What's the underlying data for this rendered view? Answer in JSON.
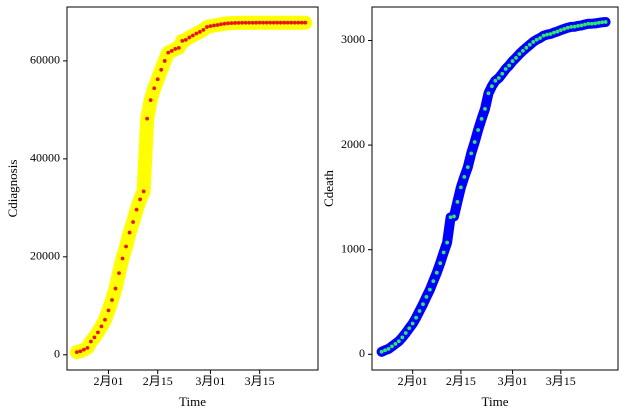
{
  "chart_data": [
    {
      "type": "line",
      "xlabel": "Time",
      "ylabel": "Cdiagnosis",
      "categories": [
        null,
        null,
        null,
        null,
        null,
        null,
        null,
        null,
        null,
        "2月01",
        null,
        null,
        null,
        null,
        null,
        null,
        null,
        null,
        null,
        null,
        null,
        null,
        null,
        "2月15",
        null,
        null,
        null,
        null,
        null,
        null,
        null,
        null,
        null,
        null,
        null,
        null,
        null,
        null,
        "3月01",
        null,
        null,
        null,
        null,
        null,
        null,
        null,
        null,
        null,
        null,
        null,
        null,
        null,
        "3月15",
        null,
        null,
        null,
        null,
        null,
        null,
        null,
        null,
        null,
        null,
        null,
        null,
        null
      ],
      "values": [
        549,
        729,
        1052,
        1423,
        2714,
        3554,
        4586,
        5806,
        7153,
        9074,
        11177,
        13522,
        16678,
        19665,
        22112,
        24953,
        27100,
        29631,
        31728,
        33366,
        48206,
        51986,
        54406,
        56249,
        58182,
        59989,
        61682,
        62031,
        62442,
        62662,
        64084,
        64287,
        64786,
        65187,
        65596,
        65914,
        66337,
        66907,
        67103,
        67217,
        67332,
        67466,
        67592,
        67666,
        67707,
        67743,
        67760,
        67773,
        67781,
        67786,
        67790,
        67794,
        67798,
        67799,
        67800,
        67800,
        67800,
        67800,
        67800,
        67800,
        67801,
        67801,
        67801,
        67801,
        67801,
        67801
      ],
      "line_color": "#ffff00",
      "marker_color": "#e8141b",
      "ylim": [
        -3100,
        71000
      ],
      "yticks": [
        0,
        20000,
        40000,
        60000
      ]
    },
    {
      "type": "line",
      "xlabel": "Time",
      "ylabel": "Cdeath",
      "categories": [
        null,
        null,
        null,
        null,
        null,
        null,
        null,
        null,
        null,
        "2月01",
        null,
        null,
        null,
        null,
        null,
        null,
        null,
        null,
        null,
        null,
        null,
        null,
        null,
        "2月15",
        null,
        null,
        null,
        null,
        null,
        null,
        null,
        null,
        null,
        null,
        null,
        null,
        null,
        null,
        "3月01",
        null,
        null,
        null,
        null,
        null,
        null,
        null,
        null,
        null,
        null,
        null,
        null,
        null,
        "3月15",
        null,
        null,
        null,
        null,
        null,
        null,
        null,
        null,
        null,
        null,
        null,
        null,
        null
      ],
      "values": [
        24,
        39,
        52,
        76,
        100,
        125,
        162,
        204,
        249,
        294,
        350,
        414,
        479,
        549,
        618,
        699,
        780,
        871,
        974,
        1068,
        1310,
        1318,
        1457,
        1596,
        1696,
        1789,
        1921,
        2029,
        2144,
        2250,
        2346,
        2495,
        2563,
        2615,
        2641,
        2682,
        2727,
        2761,
        2803,
        2834,
        2871,
        2902,
        2931,
        2959,
        2986,
        3007,
        3024,
        3046,
        3056,
        3062,
        3075,
        3085,
        3099,
        3111,
        3122,
        3130,
        3132,
        3139,
        3144,
        3153,
        3160,
        3160,
        3163,
        3169,
        3174,
        3177
      ],
      "line_color": "#0000ff",
      "marker_color": "#2ee86a",
      "ylim": [
        -150,
        3320
      ],
      "yticks": [
        0,
        1000,
        2000,
        3000
      ]
    }
  ]
}
